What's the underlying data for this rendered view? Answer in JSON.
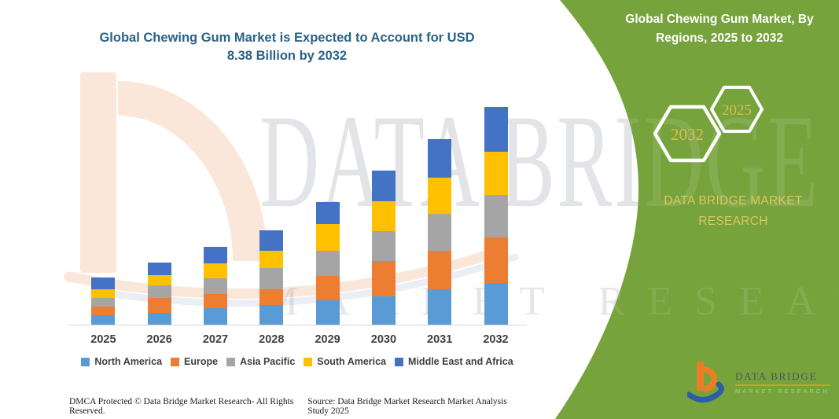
{
  "page": {
    "background": "#FFFFFF",
    "panel_green": "#76A33C"
  },
  "title": {
    "line1": "Global Chewing Gum Market is Expected to Account for USD",
    "line2": "8.38 Billion by 2032",
    "color": "#2B6386"
  },
  "side_panel": {
    "heading_line1": "Global Chewing Gum Market, By",
    "heading_line2": "Regions, 2025 to 2032",
    "hexagons": [
      {
        "label": "2032"
      },
      {
        "label": "2025"
      }
    ],
    "brand_line1": "DATA BRIDGE MARKET",
    "brand_line2": "RESEARCH",
    "accent_gold": "#D9BD55"
  },
  "logo": {
    "title": "DATA BRIDGE",
    "subtitle": "MARKET RESEARCH",
    "orange": "#E97E26",
    "blue": "#2B5EA7",
    "underline_gold": "#C9A227"
  },
  "watermark": {
    "large": "DATA BRIDGE",
    "small": "MARKET RESEARCH"
  },
  "footer": {
    "left": "DMCA Protected © Data Bridge Market Research-  All Rights Reserved.",
    "right": "Source: Data Bridge Market Research  Market Analysis Study 2025"
  },
  "chart_data": {
    "type": "bar",
    "stacked": true,
    "title": "Global Chewing Gum Market is Expected to Account for USD 8.38 Billion by 2032",
    "unit": "USD Billion",
    "categories": [
      "2025",
      "2026",
      "2027",
      "2028",
      "2029",
      "2030",
      "2031",
      "2032"
    ],
    "series": [
      {
        "name": "North America",
        "color": "#5B9BD5",
        "values": [
          0.4,
          0.48,
          0.65,
          0.78,
          0.97,
          1.11,
          1.39,
          1.62
        ]
      },
      {
        "name": "Europe",
        "color": "#ED7D31",
        "values": [
          0.33,
          0.57,
          0.55,
          0.6,
          0.94,
          1.36,
          1.46,
          1.75
        ]
      },
      {
        "name": "Asia Pacific",
        "color": "#A5A5A5",
        "values": [
          0.33,
          0.48,
          0.62,
          0.81,
          0.96,
          1.16,
          1.42,
          1.64
        ]
      },
      {
        "name": "South America",
        "color": "#FFC000",
        "values": [
          0.34,
          0.4,
          0.55,
          0.67,
          1.01,
          1.14,
          1.4,
          1.66
        ]
      },
      {
        "name": "Middle East and Africa",
        "color": "#4472C4",
        "values": [
          0.43,
          0.47,
          0.63,
          0.78,
          0.85,
          1.18,
          1.48,
          1.71
        ]
      }
    ],
    "totals": [
      1.83,
      2.4,
      3.0,
      3.64,
      4.73,
      5.95,
      7.15,
      8.38
    ],
    "y_axis_shown": false,
    "gridlines": false,
    "legend_position": "bottom"
  }
}
